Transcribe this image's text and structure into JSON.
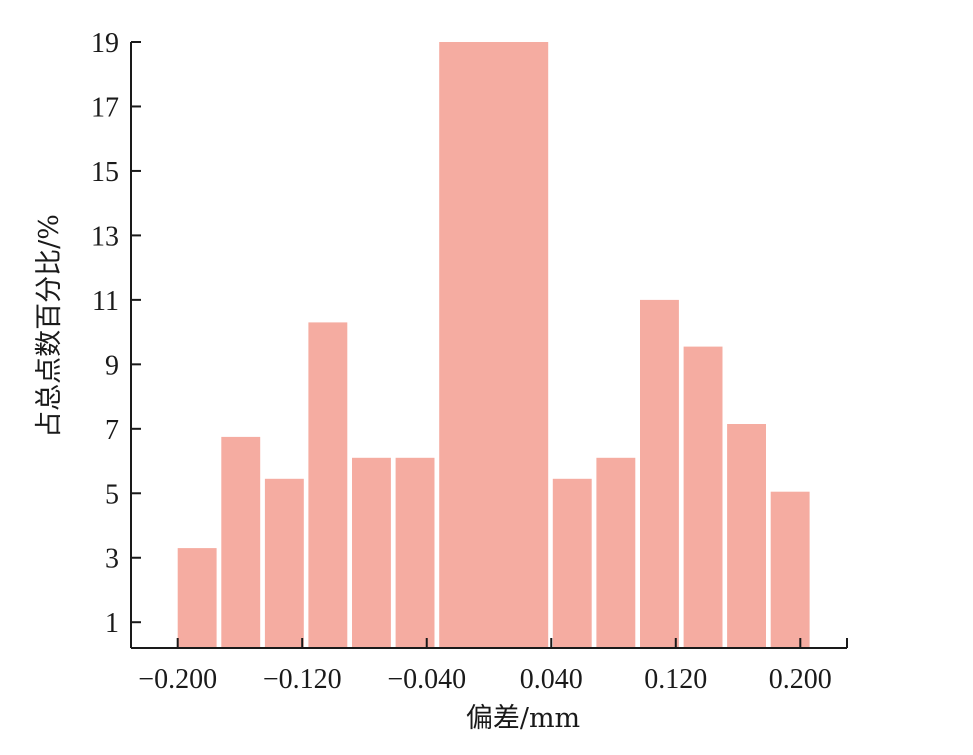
{
  "chart_data": {
    "type": "bar",
    "title": "",
    "xlabel": "偏差/mm",
    "ylabel": "占总点数百分比/%",
    "bar_color": "#f5aca1",
    "axis_color": "#1a1a1a",
    "xlim": [
      -0.23,
      0.23
    ],
    "ylim": [
      0.2,
      19
    ],
    "x_ticks": [
      -0.2,
      -0.12,
      -0.04,
      0.04,
      0.12,
      0.2
    ],
    "x_tick_labels": [
      "−0.200",
      "−0.120",
      "−0.040",
      "0.040",
      "0.120",
      "0.200"
    ],
    "y_ticks": [
      1,
      3,
      5,
      7,
      9,
      11,
      13,
      15,
      17,
      19
    ],
    "y_tick_labels": [
      "1",
      "3",
      "5",
      "7",
      "9",
      "11",
      "13",
      "15",
      "17",
      "19"
    ],
    "grid": false,
    "bars": [
      {
        "x0": -0.2,
        "x1": -0.175,
        "value": 3.3
      },
      {
        "x0": -0.172,
        "x1": -0.147,
        "value": 6.75
      },
      {
        "x0": -0.144,
        "x1": -0.119,
        "value": 5.45
      },
      {
        "x0": -0.116,
        "x1": -0.091,
        "value": 10.3
      },
      {
        "x0": -0.088,
        "x1": -0.063,
        "value": 6.1
      },
      {
        "x0": -0.06,
        "x1": -0.035,
        "value": 6.1
      },
      {
        "x0": -0.032,
        "x1": 0.038,
        "value": 19
      },
      {
        "x0": 0.041,
        "x1": 0.066,
        "value": 5.45
      },
      {
        "x0": 0.069,
        "x1": 0.094,
        "value": 6.1
      },
      {
        "x0": 0.097,
        "x1": 0.122,
        "value": 11
      },
      {
        "x0": 0.125,
        "x1": 0.15,
        "value": 9.55
      },
      {
        "x0": 0.153,
        "x1": 0.178,
        "value": 7.15
      },
      {
        "x0": 0.181,
        "x1": 0.206,
        "value": 5.05
      }
    ]
  }
}
